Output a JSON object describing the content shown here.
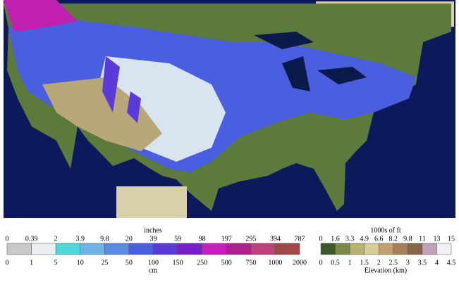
{
  "snow_legend": {
    "title_top": "inches",
    "title_bottom": "cm",
    "inches_labels": [
      "0",
      "0.39",
      "2",
      "3.9",
      "9.8",
      "20",
      "39",
      "59",
      "98",
      "197",
      "295",
      "394",
      "787"
    ],
    "cm_labels": [
      "0",
      "1",
      "5",
      "10",
      "25",
      "50",
      "100",
      "150",
      "250",
      "500",
      "750",
      "1000",
      "2000"
    ],
    "colors": [
      "#c9c9c9",
      "#e8eef2",
      "#4fd8d8",
      "#6fb3e6",
      "#5a8ae6",
      "#4a5ee0",
      "#5a3ad8",
      "#7a1ecc",
      "#c81cc0",
      "#b0208a",
      "#c0407a",
      "#a04848"
    ]
  },
  "elevation_legend": {
    "title_top": "1000s of ft",
    "title_bottom": "Elevation (km)",
    "ft_labels": [
      "0",
      "1.6",
      "3.3",
      "4.9",
      "6.6",
      "8.2",
      "9.8",
      "11",
      "13",
      "15"
    ],
    "km_labels": [
      "0",
      "0.5",
      "1",
      "1.5",
      "2",
      "2.5",
      "3",
      "3.5",
      "4",
      "4.5"
    ],
    "colors": [
      "#3d5a2a",
      "#7a8a48",
      "#b8b070",
      "#d8cc98",
      "#c0a070",
      "#a88058",
      "#8a6448",
      "#c0a0b8",
      "#f0f0f4"
    ]
  }
}
